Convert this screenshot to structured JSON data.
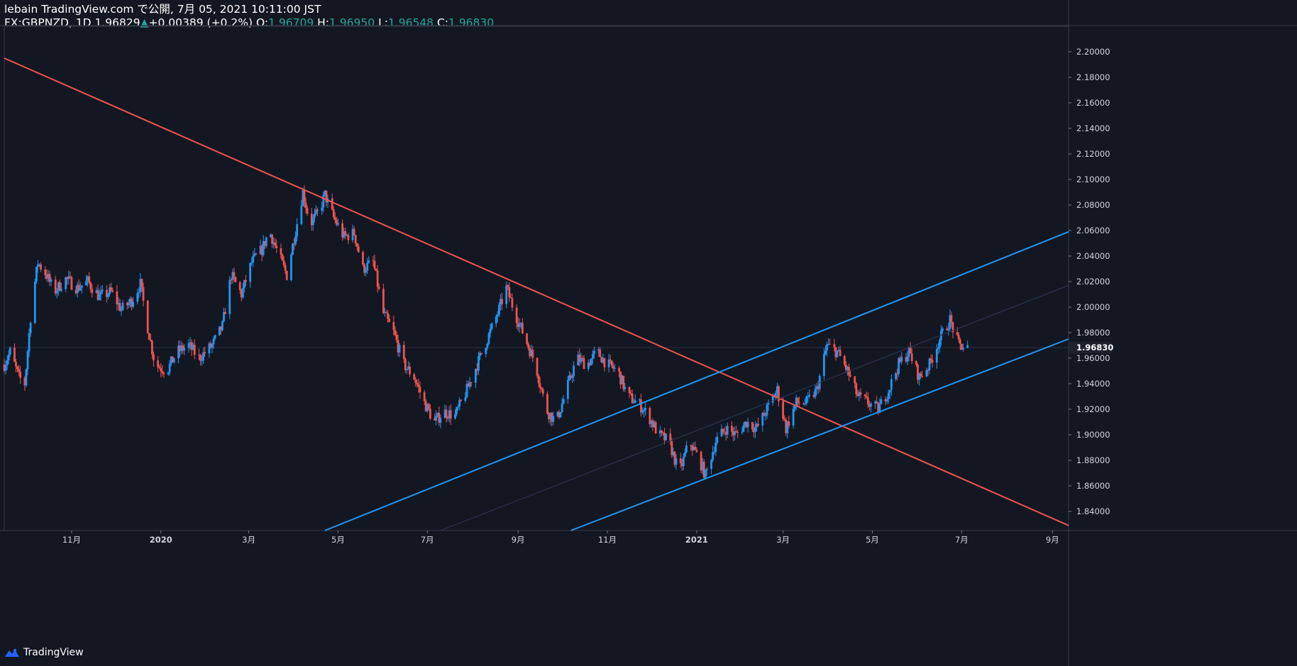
{
  "header": {
    "line1": "lebain TradingView.com で公開, 7月 05, 2021 10:11:00 JST",
    "symbol": "FX:GBPNZD, 1D",
    "last": "1.96829",
    "change_arrow": "▲",
    "change": "+0.00389 (+0.2%)",
    "open_label": "O:",
    "open": "1.96709",
    "high_label": "H:",
    "high": "1.96950",
    "low_label": "L:",
    "low": "1.96548",
    "close_label": "C:",
    "close": "1.96830"
  },
  "footer": {
    "brand": "TradingView",
    "logo_icon": "tradingview-logo-icon"
  },
  "colors": {
    "background": "#131722",
    "up_candle": "#2196f3",
    "down_candle": "#ef5350",
    "resistance_line": "#ef5350",
    "channel_line": "#2196f3",
    "axis_text": "#d1d4dc",
    "change_up": "#26a69a"
  },
  "chart_data": {
    "type": "candlestick",
    "price_axis_side": "right",
    "ylim": [
      1.825,
      2.22
    ],
    "y_ticks": [
      "2.20000",
      "2.18000",
      "2.16000",
      "2.14000",
      "2.12000",
      "2.10000",
      "2.08000",
      "2.06000",
      "2.04000",
      "2.02000",
      "2.00000",
      "1.98000",
      "1.96000",
      "1.94000",
      "1.92000",
      "1.90000",
      "1.88000",
      "1.86000",
      "1.84000"
    ],
    "current_price_label": "1.96830",
    "current_price": 1.9683,
    "x_range": [
      "2019-09-16",
      "2021-09-12"
    ],
    "x_ticks": [
      {
        "label": "11月",
        "date": "2019-11-01"
      },
      {
        "label": "2020",
        "date": "2020-01-01"
      },
      {
        "label": "3月",
        "date": "2020-03-01"
      },
      {
        "label": "5月",
        "date": "2020-05-01"
      },
      {
        "label": "7月",
        "date": "2020-07-01"
      },
      {
        "label": "9月",
        "date": "2020-09-01"
      },
      {
        "label": "11月",
        "date": "2020-11-01"
      },
      {
        "label": "2021",
        "date": "2021-01-01"
      },
      {
        "label": "3月",
        "date": "2021-03-01"
      },
      {
        "label": "5月",
        "date": "2021-05-01"
      },
      {
        "label": "7月",
        "date": "2021-07-01"
      },
      {
        "label": "9月",
        "date": "2021-09-01"
      }
    ],
    "price_path": [
      [
        "2019-09-16",
        1.955
      ],
      [
        "2019-09-20",
        1.965
      ],
      [
        "2019-09-26",
        1.945
      ],
      [
        "2019-09-30",
        1.94
      ],
      [
        "2019-10-05",
        2.005
      ],
      [
        "2019-10-09",
        2.035
      ],
      [
        "2019-10-15",
        2.025
      ],
      [
        "2019-10-20",
        2.012
      ],
      [
        "2019-10-28",
        2.022
      ],
      [
        "2019-11-05",
        2.015
      ],
      [
        "2019-11-12",
        2.02
      ],
      [
        "2019-11-20",
        2.008
      ],
      [
        "2019-11-28",
        2.012
      ],
      [
        "2019-12-05",
        1.998
      ],
      [
        "2019-12-12",
        2.005
      ],
      [
        "2019-12-18",
        2.018
      ],
      [
        "2019-12-22",
        1.99
      ],
      [
        "2019-12-28",
        1.955
      ],
      [
        "2020-01-05",
        1.95
      ],
      [
        "2020-01-12",
        1.965
      ],
      [
        "2020-01-20",
        1.97
      ],
      [
        "2020-01-27",
        1.96
      ],
      [
        "2020-02-05",
        1.97
      ],
      [
        "2020-02-12",
        1.985
      ],
      [
        "2020-02-18",
        2.025
      ],
      [
        "2020-02-25",
        2.01
      ],
      [
        "2020-03-03",
        2.035
      ],
      [
        "2020-03-10",
        2.045
      ],
      [
        "2020-03-15",
        2.06
      ],
      [
        "2020-03-20",
        2.045
      ],
      [
        "2020-03-27",
        2.025
      ],
      [
        "2020-04-02",
        2.06
      ],
      [
        "2020-04-07",
        2.09
      ],
      [
        "2020-04-12",
        2.065
      ],
      [
        "2020-04-18",
        2.075
      ],
      [
        "2020-04-22",
        2.088
      ],
      [
        "2020-04-28",
        2.07
      ],
      [
        "2020-05-05",
        2.055
      ],
      [
        "2020-05-12",
        2.058
      ],
      [
        "2020-05-18",
        2.03
      ],
      [
        "2020-05-25",
        2.035
      ],
      [
        "2020-06-01",
        1.995
      ],
      [
        "2020-06-08",
        1.98
      ],
      [
        "2020-06-15",
        1.955
      ],
      [
        "2020-06-22",
        1.945
      ],
      [
        "2020-06-29",
        1.925
      ],
      [
        "2020-07-06",
        1.91
      ],
      [
        "2020-07-12",
        1.918
      ],
      [
        "2020-07-20",
        1.915
      ],
      [
        "2020-07-28",
        1.935
      ],
      [
        "2020-08-04",
        1.955
      ],
      [
        "2020-08-11",
        1.975
      ],
      [
        "2020-08-18",
        1.995
      ],
      [
        "2020-08-24",
        2.015
      ],
      [
        "2020-08-30",
        1.995
      ],
      [
        "2020-09-06",
        1.975
      ],
      [
        "2020-09-13",
        1.955
      ],
      [
        "2020-09-20",
        1.92
      ],
      [
        "2020-09-27",
        1.91
      ],
      [
        "2020-10-04",
        1.935
      ],
      [
        "2020-10-11",
        1.96
      ],
      [
        "2020-10-18",
        1.955
      ],
      [
        "2020-10-25",
        1.965
      ],
      [
        "2020-11-01",
        1.955
      ],
      [
        "2020-11-08",
        1.95
      ],
      [
        "2020-11-15",
        1.93
      ],
      [
        "2020-11-22",
        1.925
      ],
      [
        "2020-11-29",
        1.915
      ],
      [
        "2020-12-06",
        1.9
      ],
      [
        "2020-12-13",
        1.895
      ],
      [
        "2020-12-20",
        1.87
      ],
      [
        "2020-12-27",
        1.895
      ],
      [
        "2021-01-03",
        1.88
      ],
      [
        "2021-01-07",
        1.868
      ],
      [
        "2021-01-14",
        1.895
      ],
      [
        "2021-01-21",
        1.905
      ],
      [
        "2021-01-28",
        1.9
      ],
      [
        "2021-02-04",
        1.91
      ],
      [
        "2021-02-11",
        1.905
      ],
      [
        "2021-02-18",
        1.92
      ],
      [
        "2021-02-25",
        1.935
      ],
      [
        "2021-03-03",
        1.905
      ],
      [
        "2021-03-10",
        1.925
      ],
      [
        "2021-03-17",
        1.925
      ],
      [
        "2021-03-24",
        1.935
      ],
      [
        "2021-03-31",
        1.97
      ],
      [
        "2021-04-07",
        1.965
      ],
      [
        "2021-04-14",
        1.95
      ],
      [
        "2021-04-21",
        1.93
      ],
      [
        "2021-04-28",
        1.925
      ],
      [
        "2021-05-05",
        1.92
      ],
      [
        "2021-05-12",
        1.935
      ],
      [
        "2021-05-19",
        1.955
      ],
      [
        "2021-05-26",
        1.965
      ],
      [
        "2021-06-02",
        1.945
      ],
      [
        "2021-06-09",
        1.955
      ],
      [
        "2021-06-16",
        1.975
      ],
      [
        "2021-06-23",
        1.99
      ],
      [
        "2021-06-29",
        1.97
      ],
      [
        "2021-07-05",
        1.9683
      ]
    ],
    "trendlines": [
      {
        "style": "resistance",
        "color": "#ef5350",
        "points": [
          [
            "2019-09-16",
            2.195
          ],
          [
            "2021-09-12",
            1.829
          ]
        ]
      },
      {
        "style": "channel-upper",
        "color": "#2196f3",
        "points": [
          [
            "2020-04-22",
            1.825
          ],
          [
            "2021-09-12",
            2.059
          ]
        ]
      },
      {
        "style": "channel-lower",
        "color": "#2196f3",
        "points": [
          [
            "2020-10-07",
            1.825
          ],
          [
            "2021-09-12",
            1.975
          ]
        ]
      },
      {
        "style": "channel-mid",
        "color": "#2a3a55",
        "points": [
          [
            "2020-07-10",
            1.825
          ],
          [
            "2021-09-12",
            2.017
          ]
        ]
      }
    ]
  }
}
